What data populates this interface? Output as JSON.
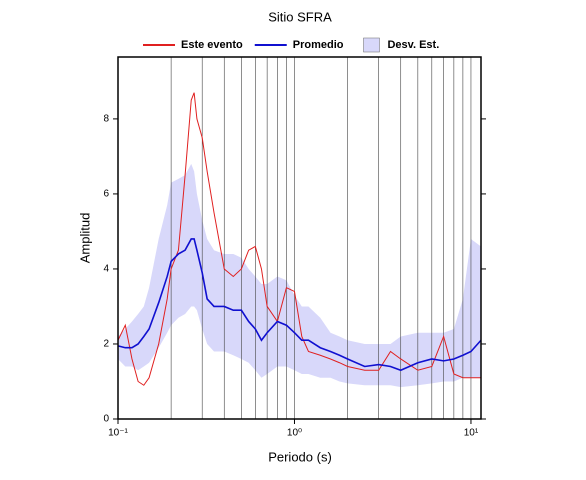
{
  "chart_data": {
    "type": "line",
    "title": "Sitio SFRA",
    "x_label": "Periodo (s)",
    "y_label": "Amplitud",
    "log_x": true,
    "x": [
      0.1,
      0.11,
      0.12,
      0.13,
      0.14,
      0.15,
      0.17,
      0.19,
      0.2,
      0.22,
      0.24,
      0.26,
      0.27,
      0.28,
      0.3,
      0.32,
      0.35,
      0.4,
      0.45,
      0.5,
      0.55,
      0.6,
      0.65,
      0.7,
      0.8,
      0.9,
      1,
      1.1,
      1.2,
      1.4,
      1.6,
      1.8,
      2,
      2.5,
      3,
      3.5,
      4,
      5,
      6,
      7,
      8,
      9,
      10,
      11.4
    ],
    "series": [
      {
        "name": "Este evento",
        "color": "#e02020",
        "values": [
          2.1,
          2.5,
          1.6,
          1.0,
          0.9,
          1.1,
          2.0,
          3.2,
          4.0,
          4.5,
          6.5,
          8.5,
          8.7,
          8.0,
          7.5,
          6.6,
          5.5,
          4.0,
          3.8,
          4.0,
          4.5,
          4.6,
          4.0,
          3.0,
          2.6,
          3.5,
          3.4,
          2.2,
          1.8,
          1.7,
          1.6,
          1.5,
          1.4,
          1.3,
          1.3,
          1.8,
          1.6,
          1.3,
          1.4,
          2.2,
          1.2,
          1.1,
          1.1,
          1.1
        ]
      },
      {
        "name": "Promedio",
        "color": "#1010d0",
        "values": [
          1.95,
          1.9,
          1.9,
          2.0,
          2.2,
          2.4,
          3.1,
          3.8,
          4.2,
          4.4,
          4.5,
          4.8,
          4.8,
          4.5,
          3.9,
          3.2,
          3.0,
          3.0,
          2.9,
          2.9,
          2.6,
          2.4,
          2.1,
          2.3,
          2.6,
          2.5,
          2.3,
          2.1,
          2.1,
          1.9,
          1.8,
          1.7,
          1.6,
          1.4,
          1.45,
          1.4,
          1.3,
          1.5,
          1.6,
          1.55,
          1.6,
          1.7,
          1.8,
          2.1
        ]
      }
    ],
    "band": {
      "name": "Desv. Est.",
      "color": "#d8d8fa",
      "upper": [
        2.2,
        2.4,
        2.6,
        2.8,
        3.0,
        3.5,
        4.8,
        5.7,
        6.3,
        6.4,
        6.5,
        6.8,
        6.6,
        6.0,
        5.3,
        4.8,
        4.5,
        4.4,
        4.4,
        4.3,
        4.0,
        3.8,
        3.6,
        3.6,
        3.8,
        3.7,
        3.3,
        3.0,
        3.0,
        2.7,
        2.3,
        2.2,
        2.1,
        2.0,
        2.0,
        2.0,
        2.2,
        2.3,
        2.3,
        2.3,
        2.4,
        3.2,
        4.8,
        4.6
      ],
      "lower": [
        1.6,
        1.4,
        1.4,
        1.3,
        1.4,
        1.5,
        1.9,
        2.3,
        2.5,
        2.7,
        2.8,
        3.0,
        3.0,
        2.9,
        2.4,
        2.0,
        1.8,
        1.8,
        1.7,
        1.6,
        1.5,
        1.3,
        1.1,
        1.2,
        1.4,
        1.4,
        1.3,
        1.2,
        1.2,
        1.1,
        1.1,
        1.0,
        0.95,
        0.9,
        0.9,
        0.9,
        0.85,
        0.9,
        0.95,
        1.0,
        1.0,
        1.1,
        1.1,
        1.1
      ]
    },
    "xlim": [
      0.1,
      11.4
    ],
    "ylim": [
      0,
      9.65
    ],
    "xticks": [
      {
        "value": 0.1,
        "label": "10⁻¹"
      },
      {
        "value": 1,
        "label": "10⁰"
      },
      {
        "value": 10,
        "label": "10¹"
      }
    ],
    "xgrid": [
      0.2,
      0.3,
      0.4,
      0.5,
      0.6,
      0.7,
      0.8,
      0.9,
      1,
      2,
      3,
      4,
      5,
      6,
      7,
      8,
      9,
      10
    ],
    "yticks": [
      0,
      2,
      4,
      6,
      8
    ],
    "legend": "top"
  }
}
